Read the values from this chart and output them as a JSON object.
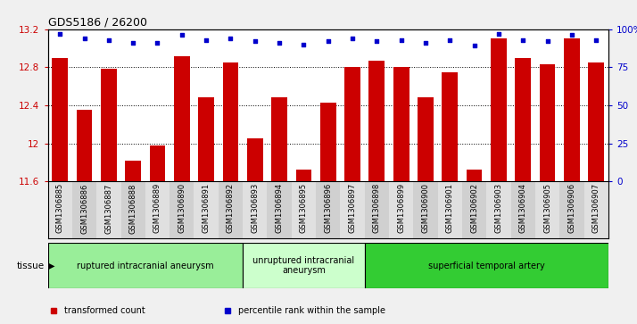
{
  "title": "GDS5186 / 26200",
  "samples": [
    "GSM1306885",
    "GSM1306886",
    "GSM1306887",
    "GSM1306888",
    "GSM1306889",
    "GSM1306890",
    "GSM1306891",
    "GSM1306892",
    "GSM1306893",
    "GSM1306894",
    "GSM1306895",
    "GSM1306896",
    "GSM1306897",
    "GSM1306898",
    "GSM1306899",
    "GSM1306900",
    "GSM1306901",
    "GSM1306902",
    "GSM1306903",
    "GSM1306904",
    "GSM1306905",
    "GSM1306906",
    "GSM1306907"
  ],
  "transformed_count": [
    12.9,
    12.35,
    12.78,
    11.82,
    11.98,
    12.92,
    12.48,
    12.85,
    12.05,
    12.48,
    11.72,
    12.43,
    12.8,
    12.87,
    12.8,
    12.48,
    12.75,
    11.72,
    13.1,
    12.9,
    12.83,
    13.1,
    12.85
  ],
  "percentile_rank": [
    97,
    94,
    93,
    91,
    91,
    96,
    93,
    94,
    92,
    91,
    90,
    92,
    94,
    92,
    93,
    91,
    93,
    89,
    97,
    93,
    92,
    96,
    93
  ],
  "ylim_left": [
    11.6,
    13.2
  ],
  "ylim_right": [
    0,
    100
  ],
  "yticks_left": [
    11.6,
    12.0,
    12.4,
    12.8,
    13.2
  ],
  "ytick_labels_left": [
    "11.6",
    "12",
    "12.4",
    "12.8",
    "13.2"
  ],
  "yticks_right": [
    0,
    25,
    50,
    75,
    100
  ],
  "ytick_labels_right": [
    "0",
    "25",
    "50",
    "75",
    "100%"
  ],
  "bar_color": "#cc0000",
  "dot_color": "#0000cc",
  "tissue_groups": [
    {
      "label": "ruptured intracranial aneurysm",
      "start": 0,
      "end": 8,
      "color": "#99ee99"
    },
    {
      "label": "unruptured intracranial\naneurysm",
      "start": 8,
      "end": 13,
      "color": "#ccffcc"
    },
    {
      "label": "superficial temporal artery",
      "start": 13,
      "end": 23,
      "color": "#33cc33"
    }
  ],
  "legend_items": [
    {
      "label": "transformed count",
      "color": "#cc0000"
    },
    {
      "label": "percentile rank within the sample",
      "color": "#0000cc"
    }
  ],
  "tissue_label": "tissue",
  "fig_bg_color": "#f0f0f0",
  "plot_bg_color": "#ffffff",
  "xtick_bg_color": "#d8d8d8",
  "left_label_color": "#cc0000",
  "right_label_color": "#0000cc"
}
